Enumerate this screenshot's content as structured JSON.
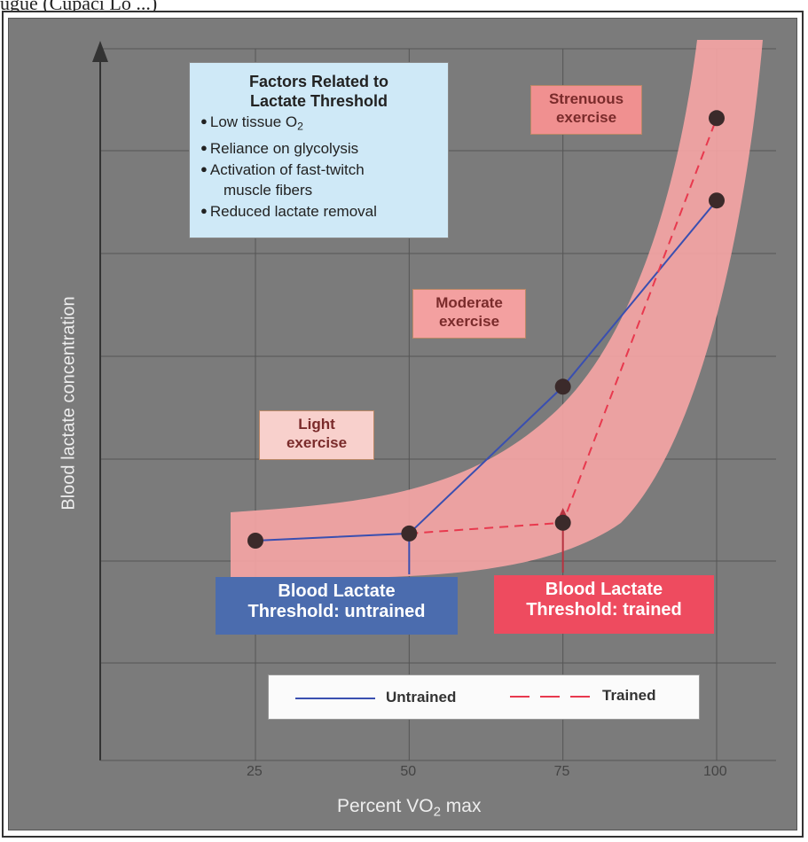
{
  "caption": "ugue (Cupaci Lo ...)",
  "factors_box": {
    "title_line1": "Factors Related to",
    "title_line2": "Lactate Threshold",
    "items": [
      {
        "text": "Low tissue O",
        "sub": "2"
      },
      {
        "text": "Reliance on glycolysis"
      },
      {
        "text": "Activation of fast-twitch"
      },
      {
        "text": "muscle fibers",
        "indent": true
      },
      {
        "text": "Reduced lactate removal"
      }
    ]
  },
  "zones": {
    "strenuous": [
      "Strenuous",
      "exercise"
    ],
    "moderate": [
      "Moderate",
      "exercise"
    ],
    "light": [
      "Light",
      "exercise"
    ]
  },
  "thresholds": {
    "untrained": [
      "Blood Lactate",
      "Threshold: untrained"
    ],
    "trained": [
      "Blood Lactate",
      "Threshold: trained"
    ]
  },
  "colors": {
    "untrained": "#3a4fb0",
    "trained": "#e8394e",
    "band": "#f7a5a5",
    "background": "#7b7b7b",
    "point": "#3b2a2a"
  },
  "chart_data": {
    "type": "line",
    "title": "",
    "xlabel": {
      "main": "Percent V",
      "sub": "O",
      "subscript": "2",
      "suffix": " max"
    },
    "ylabel": "Blood lactate concentration",
    "x_ticks": [
      "25",
      "50",
      "75",
      "100"
    ],
    "xlim": [
      0,
      105
    ],
    "grid": true,
    "legend": {
      "position": "bottom",
      "entries": [
        "Untrained",
        "Trained"
      ]
    },
    "series": [
      {
        "name": "Untrained",
        "style": "solid",
        "x": [
          25,
          50,
          75,
          100
        ],
        "y": [
          1.0,
          1.2,
          5.3,
          10.5
        ]
      },
      {
        "name": "Trained",
        "style": "dashed",
        "x": [
          50,
          75,
          100
        ],
        "y": [
          1.2,
          1.5,
          12.8
        ]
      }
    ],
    "annotations": [
      {
        "text": "Blood Lactate Threshold: untrained",
        "x": 50
      },
      {
        "text": "Blood Lactate Threshold: trained",
        "x": 75
      }
    ]
  }
}
